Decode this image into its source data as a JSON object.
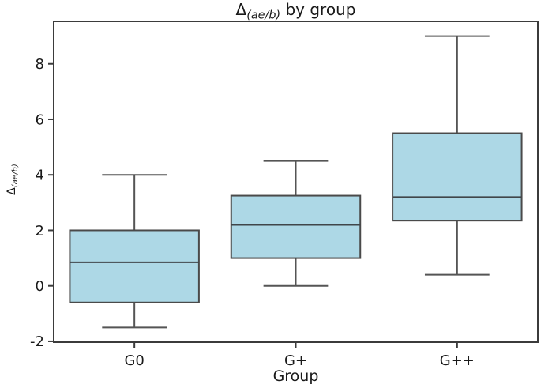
{
  "chart_data": {
    "type": "boxplot",
    "title_delta": "Δ",
    "title_subscript": "(ae/b)",
    "title_rest": " by group",
    "ylabel_delta": "Δ",
    "ylabel_subscript": "(ae/b)",
    "xlabel": "Group",
    "categories": [
      "G0",
      "G+",
      "G++"
    ],
    "x_positions": [
      1,
      2,
      3
    ],
    "series": [
      {
        "group": "G0",
        "whisker_low": -1.5,
        "q1": -0.6,
        "median": 0.85,
        "q3": 2.0,
        "whisker_high": 4.0
      },
      {
        "group": "G+",
        "whisker_low": 0.0,
        "q1": 1.0,
        "median": 2.2,
        "q3": 3.25,
        "whisker_high": 4.5
      },
      {
        "group": "G++",
        "whisker_low": 0.4,
        "q1": 2.35,
        "median": 3.2,
        "q3": 5.5,
        "whisker_high": 9.0
      }
    ],
    "yticks": [
      -2,
      0,
      2,
      4,
      6,
      8
    ],
    "ylim": [
      -2.03,
      9.53
    ],
    "xlim": [
      0.5,
      3.5
    ],
    "box_width": 0.8,
    "cap_width": 0.4,
    "grid": false,
    "legend": null,
    "colors": {
      "box_fill": "#ADD8E6",
      "box_edge": "#4a4a4a",
      "median_line": "#40464a",
      "whisker": "#555555",
      "spine": "#3b3b3b",
      "tick_text": "#1a1a1a"
    }
  }
}
